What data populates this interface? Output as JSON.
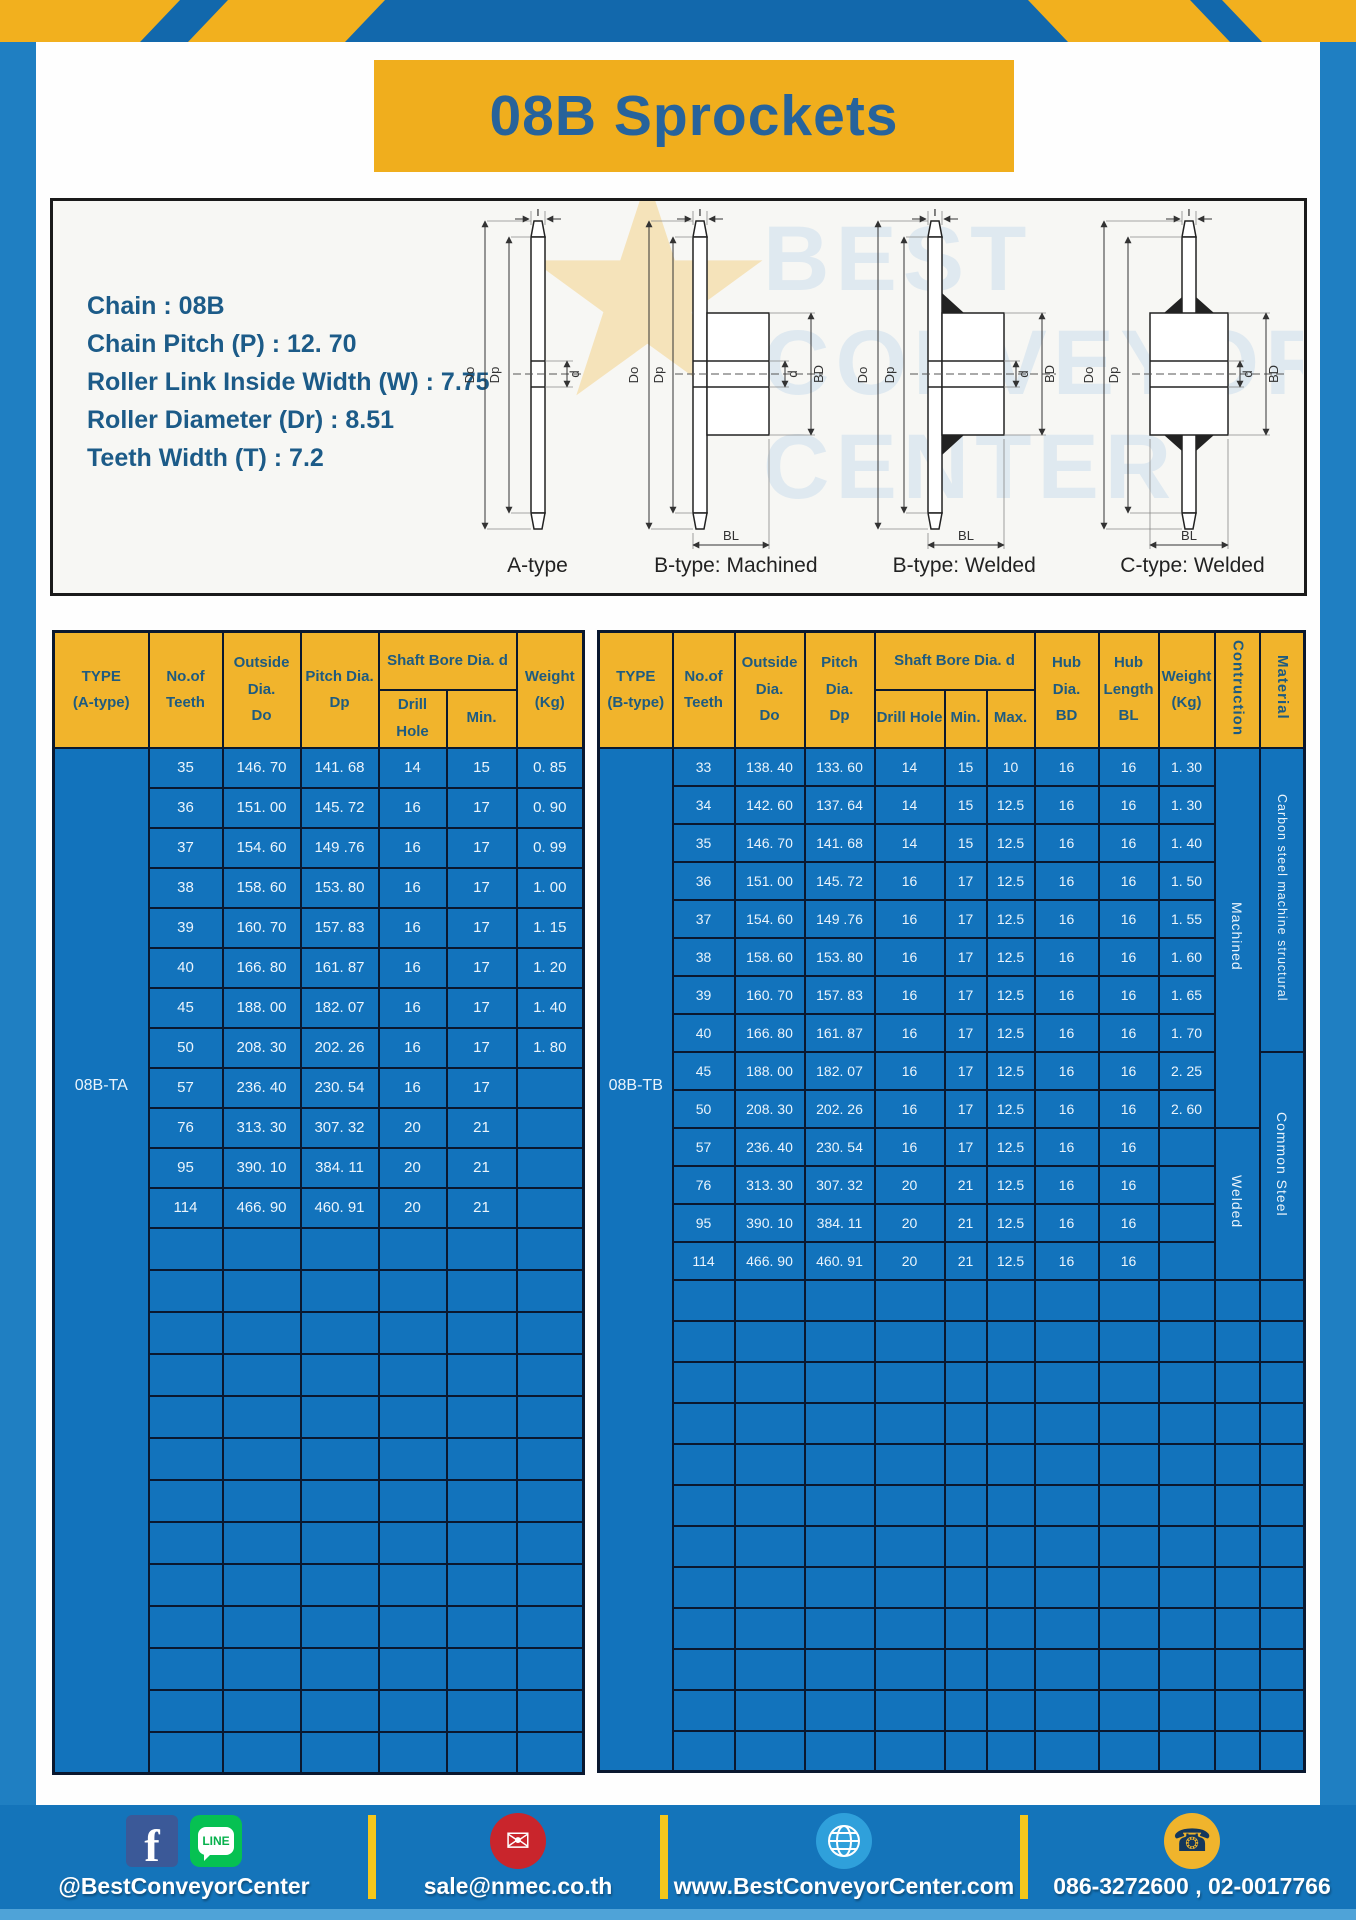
{
  "header": {
    "title": "08B Sprockets"
  },
  "specs": {
    "lines": [
      "Chain  : 08B",
      "Chain Pitch (P)  :  12. 70",
      "Roller Link Inside Width (W)  :  7.75",
      "Roller Diameter (Dr)  : 8.51",
      "Teeth Width (T)  :  7.2"
    ]
  },
  "watermark": "BEST CONVEYOR CENTER",
  "diagrams": {
    "labels": [
      "A-type",
      "B-type: Machined",
      "B-type: Welded",
      "C-type: Welded"
    ],
    "dims": {
      "t": "T",
      "do": "Do",
      "dp": "Dp",
      "d": "d",
      "bd": "BD",
      "bl": "BL"
    }
  },
  "left_table": {
    "headers": {
      "type": "TYPE\n(A-type)",
      "teeth": "No.of\nTeeth",
      "outside": "Outside\nDia.\nDo",
      "pitch": "Pitch Dia.\nDp",
      "shaft_bore": "Shaft Bore Dia. d",
      "drill_hole": "Drill Hole",
      "min": "Min.",
      "weight": "Weight\n(Kg)"
    },
    "type_label": "08B-TA",
    "rows": [
      [
        "35",
        "146. 70",
        "141. 68",
        "14",
        "15",
        "0. 85"
      ],
      [
        "36",
        "151. 00",
        "145. 72",
        "16",
        "17",
        "0. 90"
      ],
      [
        "37",
        "154. 60",
        "149 .76",
        "16",
        "17",
        "0. 99"
      ],
      [
        "38",
        "158. 60",
        "153. 80",
        "16",
        "17",
        "1. 00"
      ],
      [
        "39",
        "160. 70",
        "157. 83",
        "16",
        "17",
        "1. 15"
      ],
      [
        "40",
        "166. 80",
        "161. 87",
        "16",
        "17",
        "1. 20"
      ],
      [
        "45",
        "188. 00",
        "182. 07",
        "16",
        "17",
        "1. 40"
      ],
      [
        "50",
        "208. 30",
        "202. 26",
        "16",
        "17",
        "1. 80"
      ],
      [
        "57",
        "236. 40",
        "230. 54",
        "16",
        "17",
        ""
      ],
      [
        "76",
        "313. 30",
        "307. 32",
        "20",
        "21",
        ""
      ],
      [
        "95",
        "390. 10",
        "384. 11",
        "20",
        "21",
        ""
      ],
      [
        "114",
        "466. 90",
        "460. 91",
        "20",
        "21",
        ""
      ]
    ],
    "empty_rows": 13
  },
  "right_table": {
    "headers": {
      "type": "TYPE\n(B-type)",
      "teeth": "No.of\nTeeth",
      "outside": "Outside\nDia.\nDo",
      "pitch": "Pitch Dia.\nDp",
      "shaft_bore": "Shaft Bore Dia. d",
      "drill_hole": "Drill Hole",
      "min": "Min.",
      "max": "Max.",
      "hub_dia": "Hub Dia.\nBD",
      "hub_length": "Hub\nLength\nBL",
      "weight": "Weight\n(Kg)",
      "construction": "Contruction",
      "material": "Material"
    },
    "type_label": "08B-TB",
    "rows": [
      [
        "33",
        "138. 40",
        "133. 60",
        "14",
        "15",
        "10",
        "16",
        "16",
        "1. 30"
      ],
      [
        "34",
        "142. 60",
        "137. 64",
        "14",
        "15",
        "12.5",
        "16",
        "16",
        "1. 30"
      ],
      [
        "35",
        "146. 70",
        "141. 68",
        "14",
        "15",
        "12.5",
        "16",
        "16",
        "1. 40"
      ],
      [
        "36",
        "151. 00",
        "145. 72",
        "16",
        "17",
        "12.5",
        "16",
        "16",
        "1. 50"
      ],
      [
        "37",
        "154. 60",
        "149 .76",
        "16",
        "17",
        "12.5",
        "16",
        "16",
        "1. 55"
      ],
      [
        "38",
        "158. 60",
        "153. 80",
        "16",
        "17",
        "12.5",
        "16",
        "16",
        "1. 60"
      ],
      [
        "39",
        "160. 70",
        "157. 83",
        "16",
        "17",
        "12.5",
        "16",
        "16",
        "1. 65"
      ],
      [
        "40",
        "166. 80",
        "161. 87",
        "16",
        "17",
        "12.5",
        "16",
        "16",
        "1. 70"
      ],
      [
        "45",
        "188. 00",
        "182. 07",
        "16",
        "17",
        "12.5",
        "16",
        "16",
        "2. 25"
      ],
      [
        "50",
        "208. 30",
        "202. 26",
        "16",
        "17",
        "12.5",
        "16",
        "16",
        "2. 60"
      ],
      [
        "57",
        "236. 40",
        "230. 54",
        "16",
        "17",
        "12.5",
        "16",
        "16",
        ""
      ],
      [
        "76",
        "313. 30",
        "307. 32",
        "20",
        "21",
        "12.5",
        "16",
        "16",
        ""
      ],
      [
        "95",
        "390. 10",
        "384. 11",
        "20",
        "21",
        "12.5",
        "16",
        "16",
        ""
      ],
      [
        "114",
        "466. 90",
        "460. 91",
        "20",
        "21",
        "12.5",
        "16",
        "16",
        ""
      ]
    ],
    "construction": [
      {
        "label": "Machined",
        "span": 10
      },
      {
        "label": "Welded",
        "span": 4
      }
    ],
    "material": [
      {
        "label": "Carbon steel  machine structural",
        "span": 8
      },
      {
        "label": "Common Steel",
        "span": 6
      }
    ],
    "empty_rows": 12
  },
  "footer": {
    "facebook_letter": "f",
    "line_icon_text": "LINE",
    "sections": [
      {
        "icons": [
          "facebook-icon",
          "line-icon"
        ],
        "label": "@BestConveyorCenter"
      },
      {
        "icons": [
          "mail-icon"
        ],
        "label": "sale@nmec.co.th"
      },
      {
        "icons": [
          "globe-icon"
        ],
        "label": "www.BestConveyorCenter.com"
      },
      {
        "icons": [
          "phone-icon"
        ],
        "label": "086-3272600 , 02-0017766"
      }
    ]
  },
  "colors": {
    "frame_blue": "#1F7FC2",
    "topbar_blue": "#1268AC",
    "accent_yellow": "#F1B42C",
    "table_blue": "#1273BC",
    "grid_navy": "#0A182F",
    "title_text_blue": "#27639B",
    "header_text_blue": "#1E5B80"
  }
}
